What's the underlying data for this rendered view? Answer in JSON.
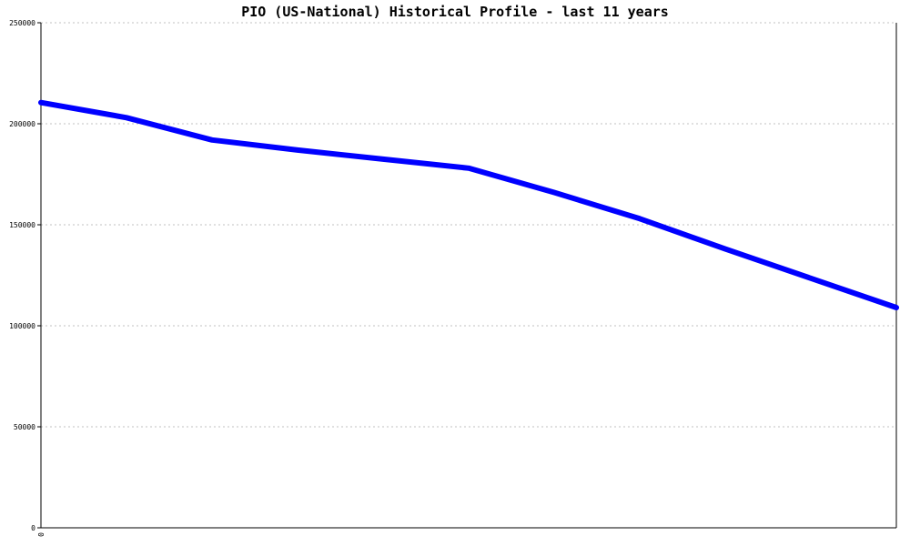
{
  "chart_data": {
    "type": "line",
    "title": "PIO (US-National) Historical Profile - last 11 years",
    "xlabel": "",
    "ylabel": "",
    "x_tick_labels": [
      "0"
    ],
    "y_ticks": [
      0,
      50000,
      100000,
      150000,
      200000,
      250000
    ],
    "y_tick_labels": [
      "0",
      "50000",
      "100000",
      "150000",
      "200000",
      "250000"
    ],
    "ylim": [
      0,
      250000
    ],
    "grid": true,
    "colors": {
      "series": "#0000ff",
      "grid": "#c0c0c0",
      "axis": "#000000"
    },
    "series": [
      {
        "values": [
          210500,
          203000,
          192000,
          187000,
          182500,
          178000,
          166000,
          153000,
          138000,
          123500,
          109000
        ]
      }
    ]
  }
}
